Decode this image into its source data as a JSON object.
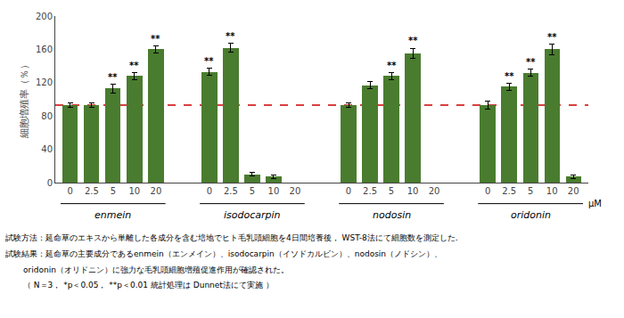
{
  "chart_data": {
    "type": "bar",
    "ylabel": "細胞増殖率（％）",
    "categories": [
      "0",
      "2.5",
      "5",
      "10",
      "20"
    ],
    "x_unit": "μM",
    "color": "#4a7c2f",
    "series": [
      {
        "name": "enmein",
        "values": [
          93,
          93,
          113,
          128,
          160
        ],
        "errors": [
          3,
          3,
          5,
          4,
          4
        ],
        "significance": [
          null,
          null,
          "**",
          "**",
          "**"
        ]
      },
      {
        "name": "isodocarpin",
        "values": [
          133,
          162,
          10,
          7,
          null
        ],
        "errors": [
          4,
          5,
          2,
          2,
          null
        ],
        "significance": [
          "**",
          "**",
          null,
          null,
          null
        ]
      },
      {
        "name": "nodosin",
        "values": [
          93,
          117,
          128,
          155,
          null
        ],
        "errors": [
          3,
          4,
          4,
          6,
          null
        ],
        "significance": [
          null,
          null,
          "**",
          "**",
          null
        ]
      },
      {
        "name": "oridonin",
        "values": [
          93,
          115,
          132,
          160,
          7
        ],
        "errors": [
          5,
          4,
          4,
          6,
          2
        ],
        "significance": [
          null,
          "**",
          "**",
          "**",
          null
        ]
      }
    ],
    "reference_line": {
      "y": 93,
      "color": "#cc0000",
      "line_style": "dashed"
    },
    "ylim": [
      0,
      200
    ],
    "yticks": [
      0,
      40,
      80,
      120,
      160,
      200
    ],
    "grid": false,
    "notes": [
      "試験方法：延命草のエキスから単離した各成分を含む培地でヒト毛乳頭細胞を4日間培養後， WST-8法にて細胞数を測定した.",
      "試験結果：延命草の主要成分であるenmein（エンメイン）、isodocarpin（イソドカルビン）、nodosin（ノドシン）、",
      "oridonin（オリドニン）に強力な毛乳頭細胞増殖促進作用が確認された。",
      "（ N＝3， *p＜0.05， **p＜0.01 統計処理は Dunnet法にて実施 ）"
    ]
  }
}
